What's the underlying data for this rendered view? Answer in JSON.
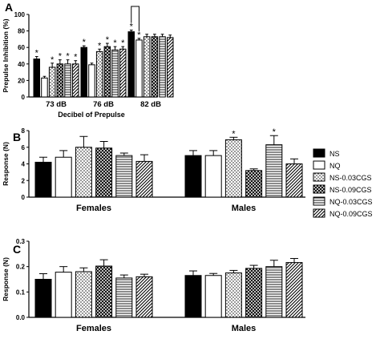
{
  "chart_data": [
    {
      "panel": "A",
      "type": "bar",
      "ylabel": "Prepulse Inhibition (%)",
      "xlabel": "Decibel of Prepulse",
      "categories": [
        "73 dB",
        "76 dB",
        "82 dB"
      ],
      "ylim": [
        0,
        100
      ],
      "yticks": [
        "0",
        "20",
        "40",
        "60",
        "80",
        "100"
      ],
      "series": [
        {
          "name": "NS",
          "values": [
            46,
            60,
            79
          ],
          "err": [
            3,
            2,
            2
          ],
          "star": [
            true,
            true,
            true
          ]
        },
        {
          "name": "NQ",
          "values": [
            23,
            39,
            69
          ],
          "err": [
            2,
            2,
            2
          ],
          "star": [
            false,
            false,
            true
          ]
        },
        {
          "name": "NS-0.03CGS",
          "values": [
            36,
            55,
            73
          ],
          "err": [
            5,
            3,
            3
          ],
          "star": [
            true,
            true,
            false
          ]
        },
        {
          "name": "NS-0.09CGS",
          "values": [
            40,
            61,
            73
          ],
          "err": [
            5,
            4,
            3
          ],
          "star": [
            true,
            true,
            false
          ]
        },
        {
          "name": "NQ-0.03CGS",
          "values": [
            40,
            57,
            73
          ],
          "err": [
            5,
            4,
            3
          ],
          "star": [
            true,
            true,
            false
          ]
        },
        {
          "name": "NQ-0.09CGS",
          "values": [
            40,
            58,
            72
          ],
          "err": [
            4,
            3,
            3
          ],
          "star": [
            true,
            true,
            false
          ]
        }
      ],
      "bracket_on": "82 dB"
    },
    {
      "panel": "B",
      "type": "bar",
      "ylabel": "Response (N)",
      "categories": [
        "Females",
        "Males"
      ],
      "ylim": [
        0,
        8
      ],
      "yticks": [
        "0",
        "2",
        "4",
        "6",
        "8"
      ],
      "series": [
        {
          "name": "NS",
          "values": [
            4.2,
            5.0
          ],
          "err": [
            0.6,
            0.6
          ],
          "star": [
            false,
            false
          ]
        },
        {
          "name": "NQ",
          "values": [
            4.8,
            5.0
          ],
          "err": [
            0.8,
            0.6
          ],
          "star": [
            false,
            false
          ]
        },
        {
          "name": "NS-0.03CGS",
          "values": [
            6.0,
            6.9
          ],
          "err": [
            1.3,
            0.3
          ],
          "star": [
            false,
            true
          ]
        },
        {
          "name": "NS-0.09CGS",
          "values": [
            5.9,
            3.2
          ],
          "err": [
            0.8,
            0.2
          ],
          "star": [
            false,
            false
          ]
        },
        {
          "name": "NQ-0.03CGS",
          "values": [
            5.0,
            6.3
          ],
          "err": [
            0.3,
            1.1
          ],
          "star": [
            false,
            true
          ]
        },
        {
          "name": "NQ-0.09CGS",
          "values": [
            4.3,
            4.0
          ],
          "err": [
            0.8,
            0.6
          ],
          "star": [
            false,
            false
          ]
        }
      ]
    },
    {
      "panel": "C",
      "type": "bar",
      "ylabel": "Response (N)",
      "categories": [
        "Females",
        "Males"
      ],
      "ylim": [
        0,
        0.3
      ],
      "yticks": [
        "0.0",
        "0.1",
        "0.2",
        "0.3"
      ],
      "series": [
        {
          "name": "NS",
          "values": [
            0.15,
            0.165
          ],
          "err": [
            0.022,
            0.018
          ],
          "star": [
            false,
            false
          ]
        },
        {
          "name": "NQ",
          "values": [
            0.178,
            0.165
          ],
          "err": [
            0.022,
            0.008
          ],
          "star": [
            false,
            false
          ]
        },
        {
          "name": "NS-0.03CGS",
          "values": [
            0.18,
            0.175
          ],
          "err": [
            0.015,
            0.01
          ],
          "star": [
            false,
            false
          ]
        },
        {
          "name": "NS-0.09CGS",
          "values": [
            0.202,
            0.193
          ],
          "err": [
            0.025,
            0.012
          ],
          "star": [
            false,
            false
          ]
        },
        {
          "name": "NQ-0.03CGS",
          "values": [
            0.155,
            0.2
          ],
          "err": [
            0.012,
            0.025
          ],
          "star": [
            false,
            false
          ]
        },
        {
          "name": "NQ-0.09CGS",
          "values": [
            0.16,
            0.216
          ],
          "err": [
            0.01,
            0.016
          ],
          "star": [
            false,
            false
          ]
        }
      ]
    }
  ],
  "legend": {
    "placement": "right of panel B",
    "entries": [
      "NS",
      "NQ",
      "NS-0.03CGS",
      "NS-0.09CGS",
      "NQ-0.03CGS",
      "NQ-0.09CGS"
    ]
  },
  "colors": {
    "bar_solid": "#000000",
    "bar_fill": "#ffffff",
    "axis": "#000000"
  }
}
